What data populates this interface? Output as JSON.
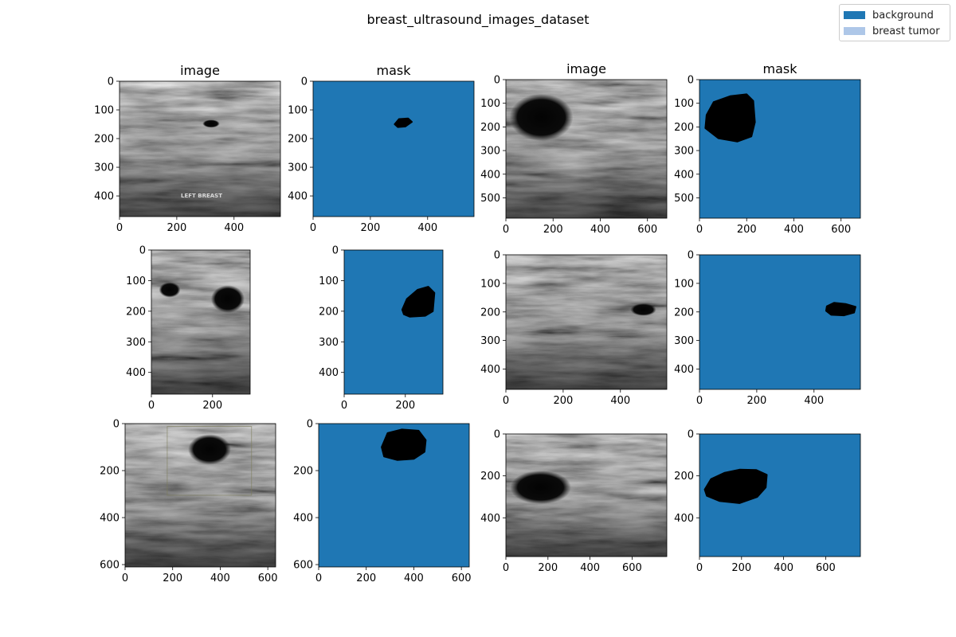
{
  "figure": {
    "title": "breast_ultrasound_images_dataset"
  },
  "legend": {
    "items": [
      {
        "label": "background",
        "color": "#1f77b4"
      },
      {
        "label": "breast tumor",
        "color": "#aec7e8"
      }
    ]
  },
  "colors": {
    "mask_background": "#1f77b4",
    "tumor_region": "#000000",
    "axis": "#000000"
  },
  "panels": [
    {
      "kind": "image",
      "title": "image",
      "width": 562,
      "height": 472,
      "xticks": [
        0,
        200,
        400
      ],
      "yticks": [
        0,
        100,
        200,
        300,
        400
      ],
      "annotation": "LEFT BREAST"
    },
    {
      "kind": "mask",
      "title": "mask",
      "width": 562,
      "height": 472,
      "xticks": [
        0,
        200,
        400
      ],
      "yticks": [
        0,
        100,
        200,
        300,
        400
      ]
    },
    {
      "kind": "image",
      "title": "image",
      "width": 682,
      "height": 586,
      "xticks": [
        0,
        200,
        400,
        600
      ],
      "yticks": [
        0,
        100,
        200,
        300,
        400,
        500
      ]
    },
    {
      "kind": "mask",
      "title": "mask",
      "width": 682,
      "height": 586,
      "xticks": [
        0,
        200,
        400,
        600
      ],
      "yticks": [
        0,
        100,
        200,
        300,
        400,
        500
      ]
    },
    {
      "kind": "image",
      "title": "",
      "width": 323,
      "height": 471,
      "xticks": [
        0,
        200
      ],
      "yticks": [
        0,
        100,
        200,
        300,
        400
      ]
    },
    {
      "kind": "mask",
      "title": "",
      "width": 323,
      "height": 471,
      "xticks": [
        0,
        200
      ],
      "yticks": [
        0,
        100,
        200,
        300,
        400
      ]
    },
    {
      "kind": "image",
      "title": "",
      "width": 562,
      "height": 471,
      "xticks": [
        0,
        200,
        400
      ],
      "yticks": [
        0,
        100,
        200,
        300,
        400
      ]
    },
    {
      "kind": "mask",
      "title": "",
      "width": 562,
      "height": 471,
      "xticks": [
        0,
        200,
        400
      ],
      "yticks": [
        0,
        100,
        200,
        300,
        400
      ]
    },
    {
      "kind": "image",
      "title": "",
      "width": 633,
      "height": 610,
      "xticks": [
        0,
        200,
        400,
        600
      ],
      "yticks": [
        0,
        200,
        400,
        600
      ]
    },
    {
      "kind": "mask",
      "title": "",
      "width": 633,
      "height": 610,
      "xticks": [
        0,
        200,
        400,
        600
      ],
      "yticks": [
        0,
        200,
        400,
        600
      ]
    },
    {
      "kind": "image",
      "title": "",
      "width": 765,
      "height": 585,
      "xticks": [
        0,
        200,
        400,
        600
      ],
      "yticks": [
        0,
        200,
        400
      ]
    },
    {
      "kind": "mask",
      "title": "",
      "width": 765,
      "height": 585,
      "xticks": [
        0,
        200,
        400,
        600
      ],
      "yticks": [
        0,
        200,
        400
      ]
    }
  ]
}
